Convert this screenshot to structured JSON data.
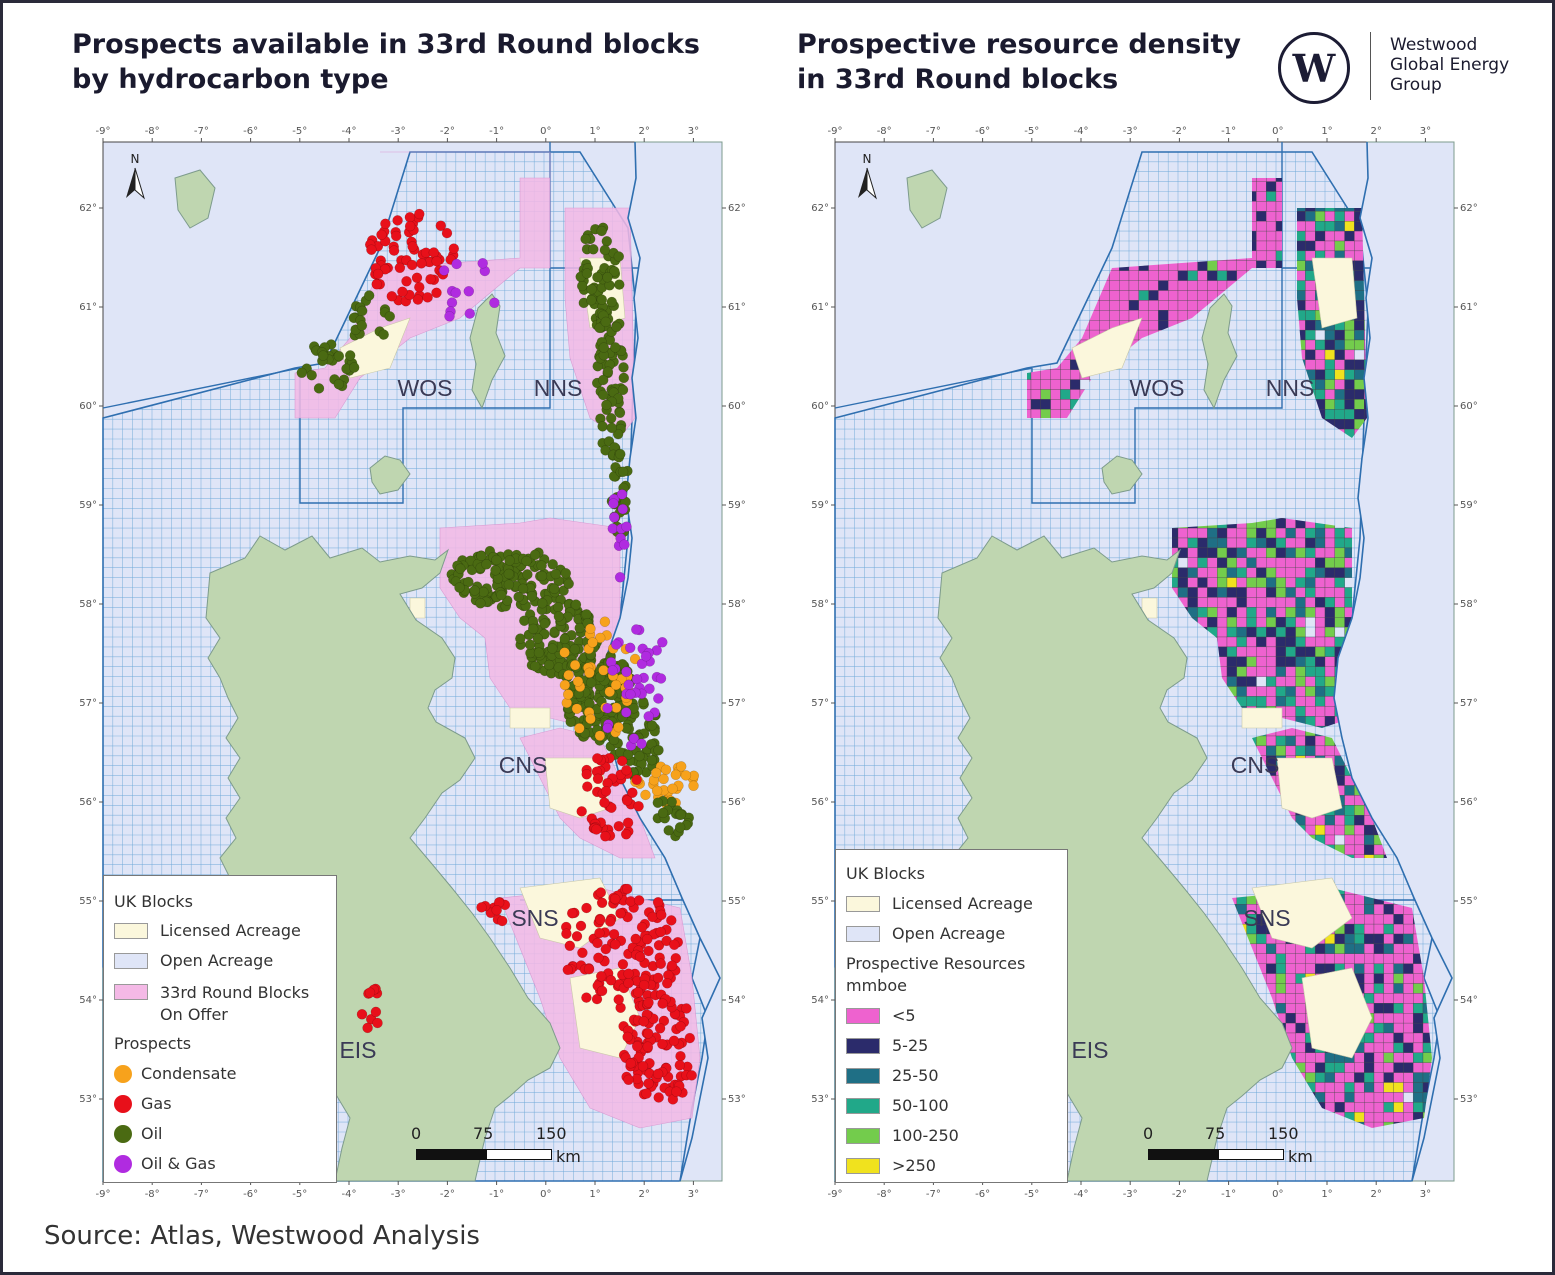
{
  "left_panel": {
    "title_line1": "Prospects available in 33rd Round blocks",
    "title_line2": "by hydrocarbon type",
    "legend": {
      "blocks_heading": "UK Blocks",
      "licensed": "Licensed Acreage",
      "open": "Open Acreage",
      "round_line1": "33rd Round Blocks",
      "round_line2": "On Offer",
      "prospects_heading": "Prospects",
      "condensate": "Condensate",
      "gas": "Gas",
      "oil": "Oil",
      "oil_gas": "Oil & Gas"
    },
    "scale": {
      "t0": "0",
      "t1": "75",
      "t2": "150",
      "unit": "km"
    }
  },
  "right_panel": {
    "title_line1": "Prospective resource density",
    "title_line2": "in 33rd Round blocks",
    "legend": {
      "blocks_heading": "UK Blocks",
      "licensed": "Licensed Acreage",
      "open": "Open Acreage",
      "resources_heading": "Prospective Resources",
      "resources_unit": "mmboe",
      "classes": [
        "<5",
        "5-25",
        "25-50",
        "50-100",
        "100-250",
        ">250"
      ]
    },
    "scale": {
      "t0": "0",
      "t1": "75",
      "t2": "150",
      "unit": "km"
    }
  },
  "map": {
    "north_label": "N",
    "regions": [
      "WOS",
      "NNS",
      "CNS",
      "SNS",
      "EIS"
    ],
    "lon_ticks": [
      "-9°",
      "-8°",
      "-7°",
      "-6°",
      "-5°",
      "-4°",
      "-3°",
      "-2°",
      "-1°",
      "0°",
      "1°",
      "2°",
      "3°"
    ],
    "lat_ticks": [
      "62°",
      "61°",
      "60°",
      "59°",
      "58°",
      "57°",
      "56°",
      "55°",
      "54°",
      "53°"
    ]
  },
  "logo": {
    "mark": "W",
    "line1": "Westwood",
    "line2": "Global Energy",
    "line3": "Group"
  },
  "colors": {
    "sea": "#dfe5f7",
    "grid": "#6fa9d8",
    "land": "#bfd6b0",
    "licensed": "#fbf7dc",
    "round33": "#f4b9e6",
    "condensate": "#f7a21c",
    "gas": "#e8101a",
    "oil": "#4a6a12",
    "oil_gas": "#b02be0",
    "res_lt5": "#ee62cf",
    "res_5_25": "#2b2b6b",
    "res_25_50": "#1f6f85",
    "res_50_100": "#21a889",
    "res_100_250": "#73cc4c",
    "res_gt250": "#f0e21e"
  },
  "source": "Source: Atlas, Westwood Analysis"
}
